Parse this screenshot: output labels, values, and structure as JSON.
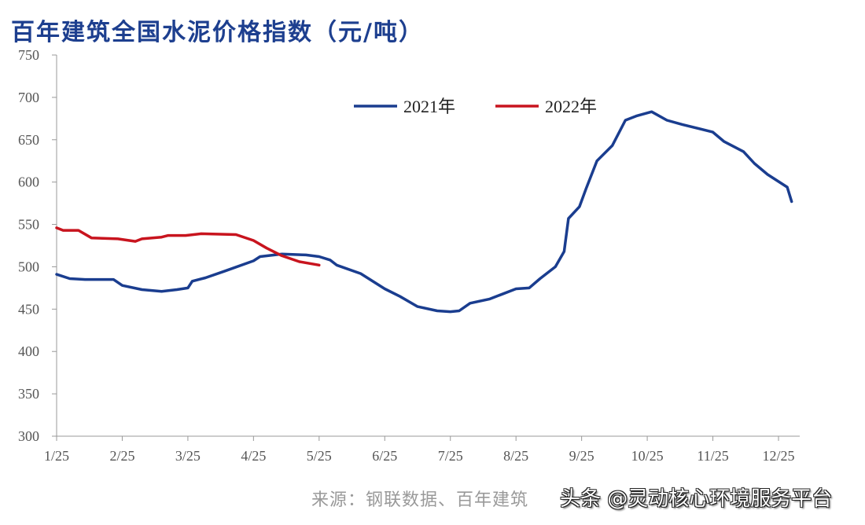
{
  "chart_data": {
    "type": "line",
    "title": "百年建筑全国水泥价格指数（元/吨）",
    "xlabel": "",
    "ylabel": "",
    "ylim": [
      300,
      750
    ],
    "yticks": [
      "750",
      "700",
      "650",
      "600",
      "550",
      "500",
      "450",
      "400",
      "350",
      "300"
    ],
    "xticks": [
      "1/25",
      "2/25",
      "3/25",
      "4/25",
      "5/25",
      "6/25",
      "7/25",
      "8/25",
      "9/25",
      "10/25",
      "11/25",
      "12/25"
    ],
    "grid": false,
    "legend": "top-center",
    "series": [
      {
        "name": "2021年",
        "color": "#1a3d8f",
        "x": [
          "1/25",
          "2/1",
          "2/8",
          "2/21",
          "2/25",
          "3/4",
          "3/13",
          "3/20",
          "3/25",
          "3/27",
          "4/3",
          "4/12",
          "4/25",
          "4/28",
          "5/8",
          "5/19",
          "5/25",
          "5/30",
          "6/3",
          "6/14",
          "6/25",
          "7/2",
          "7/10",
          "7/19",
          "7/25",
          "7/29",
          "8/4",
          "8/13",
          "8/25",
          "9/1",
          "9/6",
          "9/13",
          "9/17",
          "9/19",
          "9/24",
          "9/27",
          "10/2",
          "10/9",
          "10/15",
          "10/20",
          "10/27",
          "11/4",
          "11/11",
          "11/25",
          "11/30",
          "12/9",
          "12/14",
          "12/20",
          "12/29",
          "12/31"
        ],
        "values": [
          491,
          486,
          485,
          485,
          478,
          473,
          471,
          473,
          475,
          483,
          487,
          495,
          507,
          512,
          515,
          514,
          512,
          508,
          502,
          492,
          474,
          465,
          453,
          448,
          447,
          448,
          457,
          462,
          474,
          475,
          486,
          500,
          518,
          557,
          571,
          592,
          625,
          643,
          673,
          678,
          683,
          673,
          668,
          659,
          648,
          636,
          622,
          609,
          594,
          577
        ]
      },
      {
        "name": "2022年",
        "color": "#c8141e",
        "x": [
          "1/25",
          "1/28",
          "2/5",
          "2/11",
          "2/23",
          "3/1",
          "3/4",
          "3/13",
          "3/16",
          "3/24",
          "4/1",
          "4/17",
          "4/25",
          "5/1",
          "5/8",
          "5/16",
          "5/25"
        ],
        "values": [
          546,
          543,
          543,
          534,
          533,
          530,
          533,
          535,
          537,
          537,
          539,
          538,
          531,
          522,
          513,
          506,
          502
        ]
      }
    ]
  },
  "source": "来源：钢联数据、百年建筑",
  "watermark": "头条 @灵动核心环境服务平台"
}
